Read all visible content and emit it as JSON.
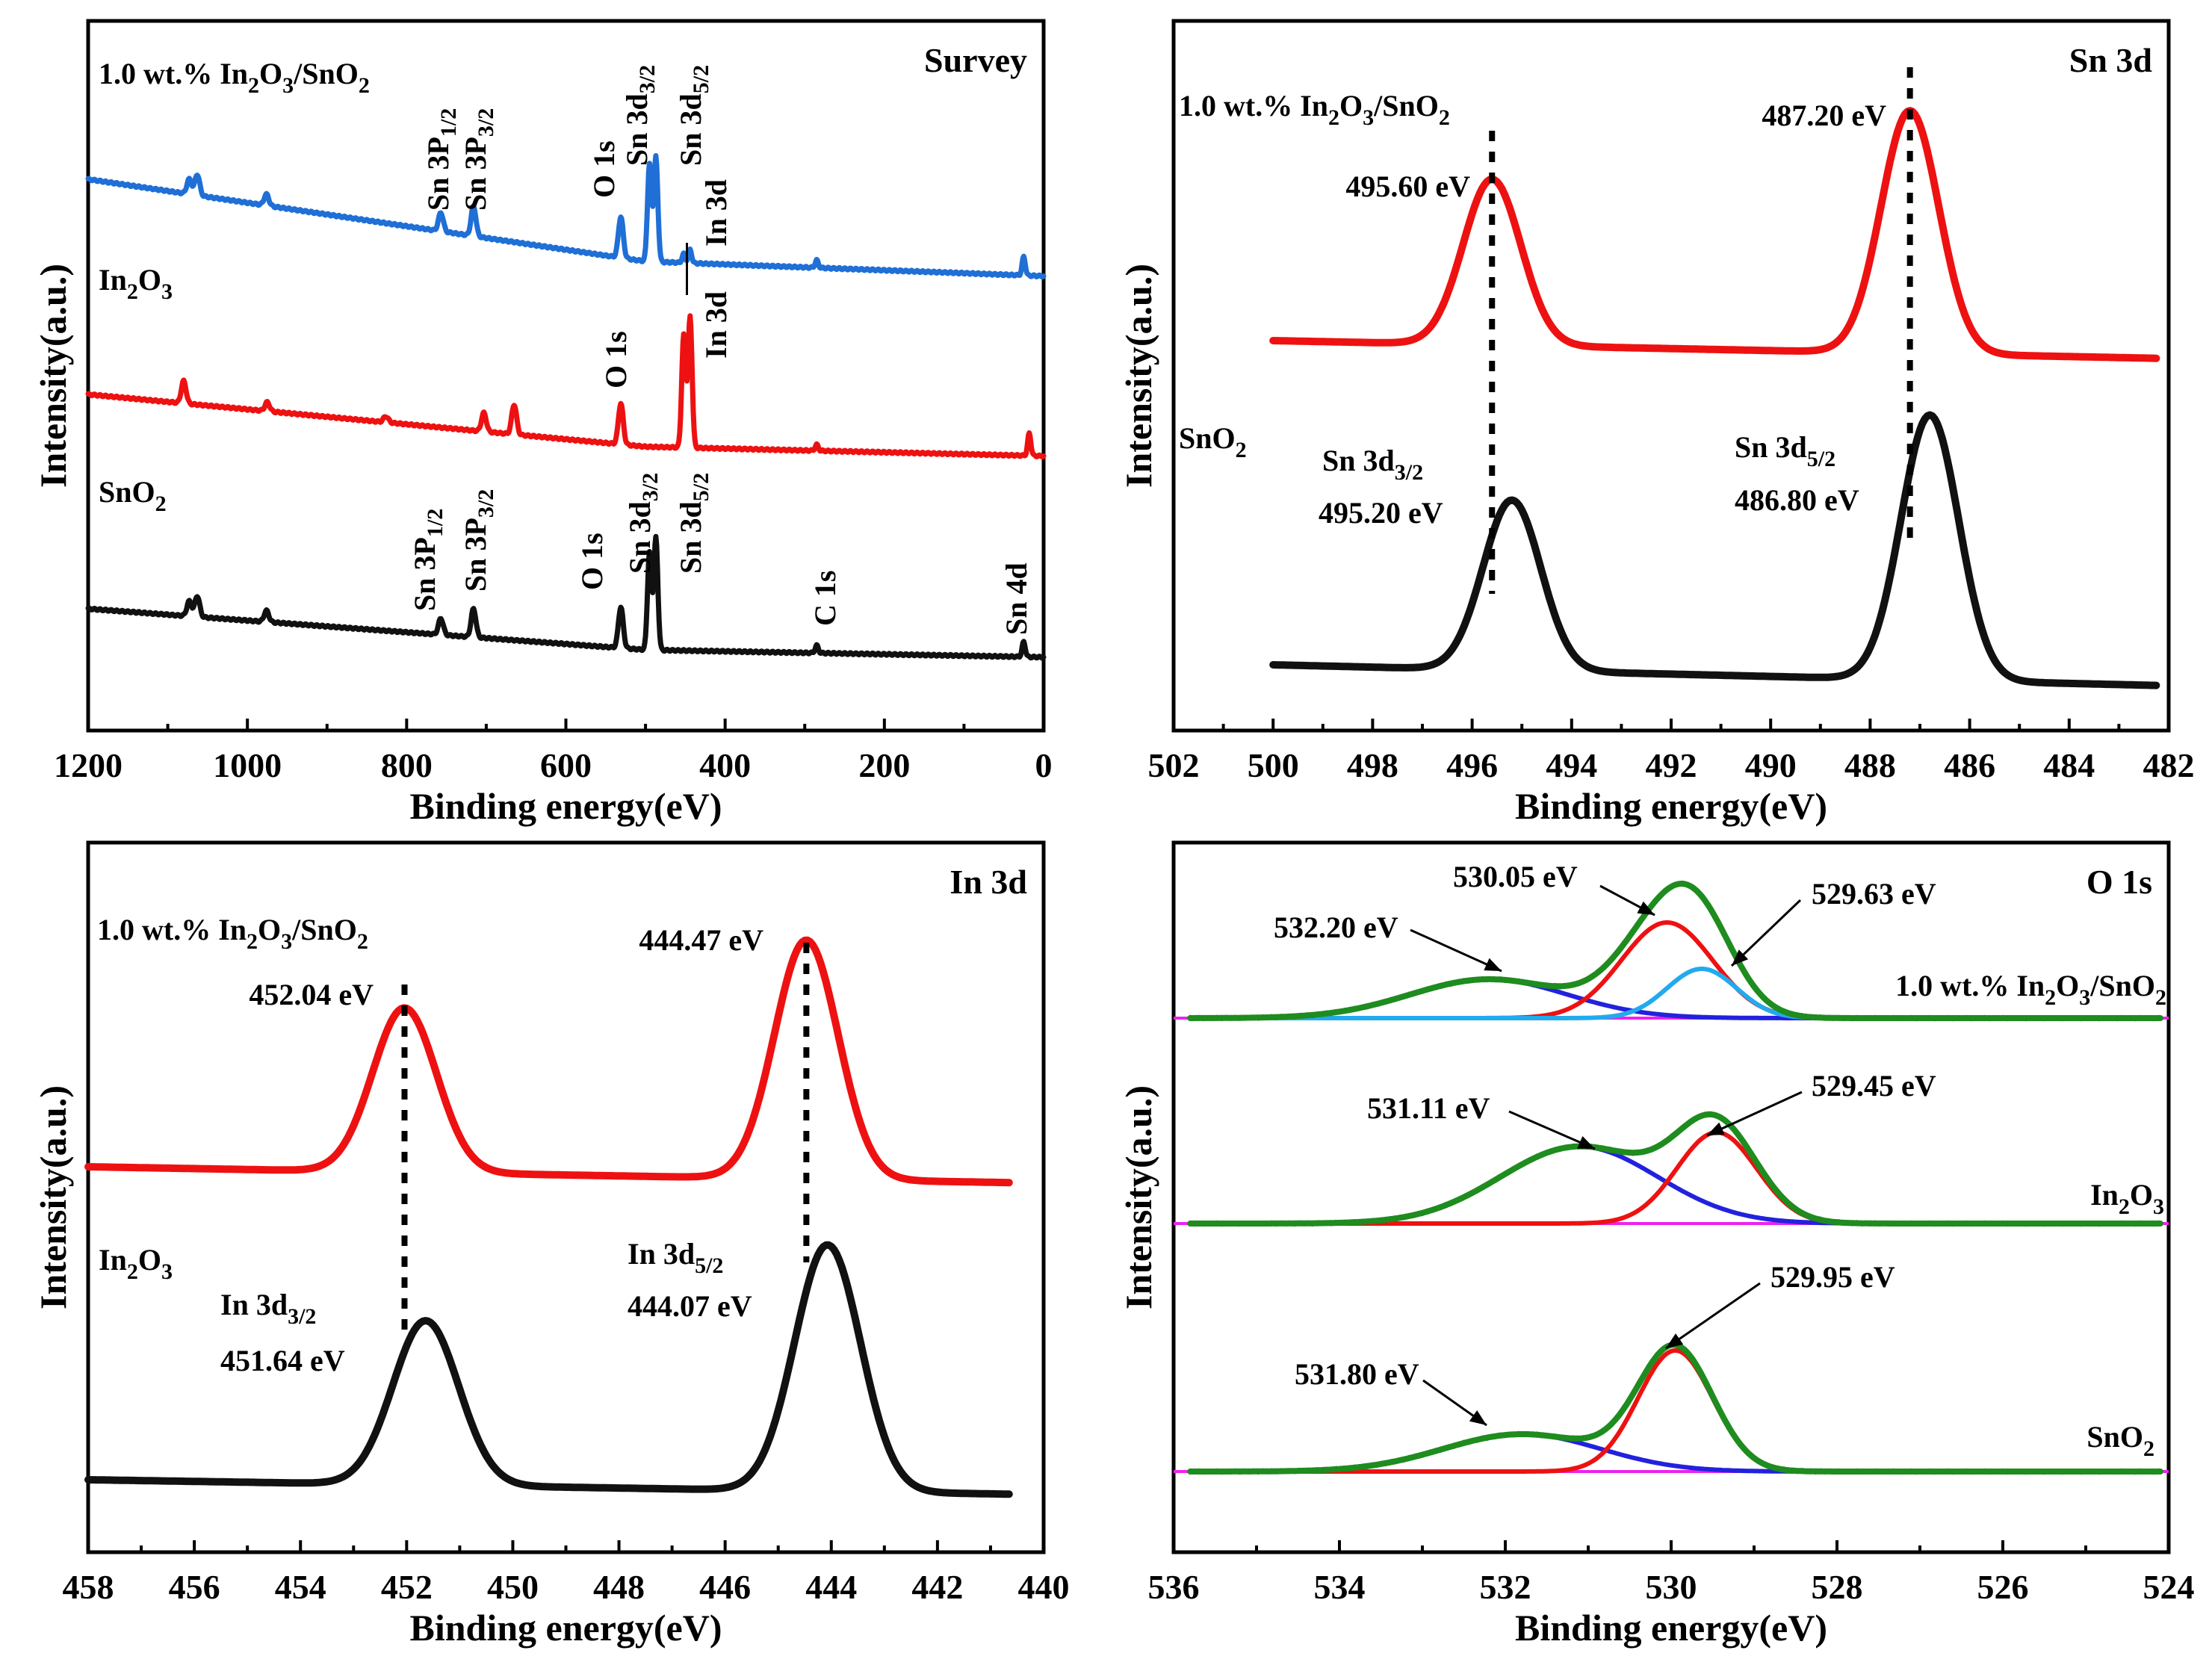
{
  "chart_data": [
    {
      "id": "survey",
      "type": "line",
      "title": "Survey",
      "xlabel": "Binding energy(eV)",
      "ylabel": "Intensity(a.u.)",
      "xlim": [
        1200,
        0
      ],
      "xticks": [
        1200,
        1000,
        800,
        600,
        400,
        200,
        0
      ],
      "colors": {
        "composite": "#1f6fd6",
        "in2o3": "#ee1111",
        "sno2": "#111111"
      },
      "series_labels": [
        "1.0 wt.% In2O3/SnO2",
        "In2O3",
        "SnO2"
      ],
      "peak_labels": {
        "composite": [
          "Sn 3P1/2",
          "Sn 3P3/2",
          "O 1s",
          "Sn 3d3/2",
          "Sn 3d5/2",
          "In 3d"
        ],
        "in2o3": [
          "O 1s",
          "In 3d"
        ],
        "sno2": [
          "Sn 3P1/2",
          "Sn 3P3/2",
          "O 1s",
          "Sn 3d3/2",
          "Sn 3d5/2",
          "C 1s",
          "Sn 4d"
        ]
      }
    },
    {
      "id": "sn3d",
      "type": "line",
      "title": "Sn 3d",
      "xlabel": "Binding energy(eV)",
      "ylabel": "Intensity(a.u.)",
      "xlim": [
        502,
        482
      ],
      "xticks": [
        502,
        500,
        498,
        496,
        494,
        492,
        490,
        488,
        486,
        484,
        482
      ],
      "series": [
        {
          "name": "1.0 wt.% In2O3/SnO2",
          "color": "#ee1111",
          "peaks_eV": [
            495.6,
            487.2
          ],
          "labels": [
            "495.60 eV",
            "487.20 eV"
          ]
        },
        {
          "name": "SnO2",
          "color": "#111111",
          "peaks_eV": [
            495.2,
            486.8
          ],
          "labels": [
            "495.20 eV",
            "486.80 eV"
          ],
          "orbitals": [
            "Sn 3d3/2",
            "Sn 3d5/2"
          ]
        }
      ]
    },
    {
      "id": "in3d",
      "type": "line",
      "title": "In 3d",
      "xlabel": "Binding energy(eV)",
      "ylabel": "Intensity(a.u.)",
      "xlim": [
        458,
        440
      ],
      "xticks": [
        458,
        456,
        454,
        452,
        450,
        448,
        446,
        444,
        442,
        440
      ],
      "series": [
        {
          "name": "1.0 wt.% In2O3/SnO2",
          "color": "#ee1111",
          "peaks_eV": [
            452.04,
            444.47
          ],
          "labels": [
            "452.04 eV",
            "444.47 eV"
          ]
        },
        {
          "name": "In2O3",
          "color": "#111111",
          "peaks_eV": [
            451.64,
            444.07
          ],
          "labels": [
            "451.64 eV",
            "444.07 eV"
          ],
          "orbitals": [
            "In 3d3/2",
            "In 3d5/2"
          ]
        }
      ]
    },
    {
      "id": "o1s",
      "type": "line",
      "title": "O 1s",
      "xlabel": "Binding energy(eV)",
      "ylabel": "Intensity(a.u.)",
      "xlim": [
        536,
        524
      ],
      "xticks": [
        536,
        534,
        532,
        530,
        528,
        526,
        524
      ],
      "samples": [
        {
          "name": "1.0 wt.% In2O3/SnO2",
          "components_eV": [
            532.2,
            530.05,
            529.63
          ],
          "labels": [
            "532.20 eV",
            "530.05 eV",
            "529.63 eV"
          ]
        },
        {
          "name": "In2O3",
          "components_eV": [
            531.11,
            529.45
          ],
          "labels": [
            "531.11 eV",
            "529.45 eV"
          ]
        },
        {
          "name": "SnO2",
          "components_eV": [
            531.8,
            529.95
          ],
          "labels": [
            "531.80 eV",
            "529.95 eV"
          ]
        }
      ],
      "colors": {
        "envelope": "#1e8c1e",
        "raw": "#111111",
        "component_a": "#2222dd",
        "component_b": "#ee1111",
        "component_c": "#22aaee",
        "baseline": "#ee22ee"
      }
    }
  ],
  "text": {
    "composite_sub": "1.0 wt.% In",
    "o2": "O",
    "sn": "/SnO",
    "in2o3_a": "In",
    "in2o3_b": "O",
    "sno2_a": "SnO",
    "sub2": "2",
    "sub3": "3",
    "sub12": "1/2",
    "sub32": "3/2",
    "sub52": "5/2"
  }
}
